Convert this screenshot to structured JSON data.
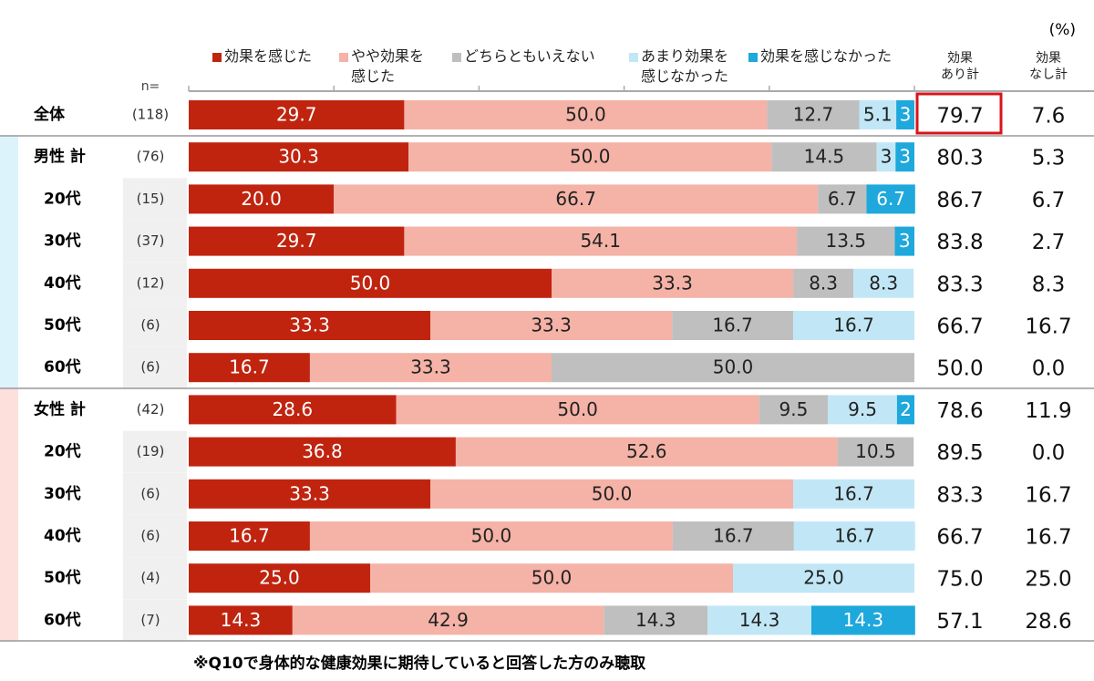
{
  "chart_data": {
    "type": "stacked-bar-horizontal",
    "unit": "(%)",
    "n_header": "n=",
    "footnote": "※Q10で身体的な健康効果に期待していると回答した方のみ聴取",
    "categories": [
      "全体",
      "男性 計",
      "20代",
      "30代",
      "40代",
      "50代",
      "60代",
      "女性 計",
      "20代",
      "30代",
      "40代",
      "50代",
      "60代"
    ],
    "n": [
      "(118)",
      "(76)",
      "(15)",
      "(37)",
      "(12)",
      "(6)",
      "(6)",
      "(42)",
      "(19)",
      "(6)",
      "(6)",
      "(4)",
      "(7)"
    ],
    "xlim": [
      0,
      100
    ],
    "xticks": [
      0,
      20,
      40,
      60,
      80,
      100
    ],
    "series": [
      {
        "name": "効果を感じた",
        "color": "#c0240f",
        "values": [
          29.7,
          30.3,
          20.0,
          29.7,
          50.0,
          33.3,
          16.7,
          28.6,
          36.8,
          33.3,
          16.7,
          25.0,
          14.3
        ],
        "value_labels": [
          "29.7",
          "30.3",
          "20.0",
          "29.7",
          "50.0",
          "33.3",
          "16.7",
          "28.6",
          "36.8",
          "33.3",
          "16.7",
          "25.0",
          "14.3"
        ]
      },
      {
        "name": "やや効果を\n感じた",
        "color": "#f5b2a7",
        "values": [
          50.0,
          50.0,
          66.7,
          54.1,
          33.3,
          33.3,
          33.3,
          50.0,
          52.6,
          50.0,
          50.0,
          50.0,
          42.9
        ],
        "value_labels": [
          "50.0",
          "50.0",
          "66.7",
          "54.1",
          "33.3",
          "33.3",
          "33.3",
          "50.0",
          "52.6",
          "50.0",
          "50.0",
          "50.0",
          "42.9"
        ]
      },
      {
        "name": "どちらともいえない",
        "color": "#bfbfbf",
        "values": [
          12.7,
          14.5,
          6.7,
          13.5,
          8.3,
          16.7,
          50.0,
          9.5,
          10.5,
          null,
          16.7,
          null,
          14.3
        ],
        "value_labels": [
          "12.7",
          "14.5",
          "6.7",
          "13.5",
          "8.3",
          "16.7",
          "50.0",
          "9.5",
          "10.5",
          null,
          "16.7",
          null,
          "14.3"
        ]
      },
      {
        "name": "あまり効果を\n感じなかった",
        "color": "#c1e7f6",
        "values": [
          5.1,
          2.6,
          null,
          null,
          8.3,
          16.7,
          null,
          9.5,
          null,
          16.7,
          16.7,
          25.0,
          14.3
        ],
        "value_labels": [
          "5.1",
          "3",
          null,
          null,
          "8.3",
          "16.7",
          null,
          "9.5",
          null,
          "16.7",
          "16.7",
          "25.0",
          "14.3"
        ]
      },
      {
        "name": "効果を感じなかった",
        "color": "#1ea8dc",
        "values": [
          2.5,
          2.6,
          6.7,
          2.7,
          null,
          null,
          null,
          2.4,
          null,
          null,
          null,
          null,
          14.3
        ],
        "value_labels": [
          "3",
          "3",
          "6.7",
          "3",
          null,
          null,
          null,
          "2",
          null,
          null,
          null,
          null,
          "14.3"
        ]
      }
    ],
    "summary_columns": [
      {
        "name": "効果\nあり計",
        "labels": [
          "79.7",
          "80.3",
          "86.7",
          "83.8",
          "83.3",
          "66.7",
          "50.0",
          "78.6",
          "89.5",
          "83.3",
          "66.7",
          "75.0",
          "57.1"
        ]
      },
      {
        "name": "効果\nなし計",
        "labels": [
          "7.6",
          "5.3",
          "6.7",
          "2.7",
          "8.3",
          "16.7",
          "0.0",
          "11.9",
          "0.0",
          "16.7",
          "16.7",
          "25.0",
          "28.6"
        ]
      }
    ]
  }
}
